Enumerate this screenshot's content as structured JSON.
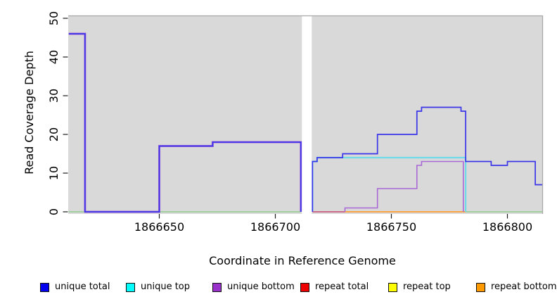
{
  "chart_data": {
    "type": "line",
    "subtype": "step-coverage-plot",
    "title": "",
    "xlabel": "Coordinate in Reference Genome",
    "ylabel": "Read Coverage Depth",
    "xticks": [
      1866650,
      1866700,
      1866750,
      1866800
    ],
    "yticks": [
      0,
      10,
      20,
      30,
      40,
      50
    ],
    "xlim": [
      1866611,
      1866815
    ],
    "ylim": [
      0,
      51
    ],
    "grid": false,
    "plot_bg": "#d9d9d9",
    "border_color": "#a8a8a8",
    "gap_x": [
      1866711,
      1866716
    ],
    "series": [
      {
        "name": "baseline zero",
        "color": "#82c982",
        "width": 1.3,
        "segments": [
          [
            [
              1866611,
              0
            ],
            [
              1866711,
              0
            ]
          ],
          [
            [
              1866782,
              0
            ],
            [
              1866815,
              0
            ]
          ]
        ]
      },
      {
        "name": "repeat total",
        "color": "#c9496f",
        "width": 1.6,
        "segments": [
          [
            [
              1866716,
              0
            ],
            [
              1866730,
              0
            ]
          ]
        ]
      },
      {
        "name": "repeat bottom",
        "color": "#ff9d2e",
        "width": 1.8,
        "segments": [
          [
            [
              1866730,
              0
            ],
            [
              1866782,
              0
            ]
          ]
        ]
      },
      {
        "name": "unique bottom",
        "color": "#a869d6",
        "width": 1.6,
        "segwidths": [
          3.0,
          1.6
        ],
        "segments": [
          [
            [
              1866611,
              46
            ],
            [
              1866618,
              46
            ],
            [
              1866618,
              0
            ],
            [
              1866650,
              0
            ],
            [
              1866650,
              17
            ],
            [
              1866673,
              17
            ],
            [
              1866673,
              18
            ],
            [
              1866711,
              18
            ],
            [
              1866711,
              0
            ]
          ],
          [
            [
              1866730,
              0
            ],
            [
              1866730,
              1
            ],
            [
              1866744,
              1
            ],
            [
              1866744,
              6
            ],
            [
              1866761,
              6
            ],
            [
              1866761,
              12
            ],
            [
              1866763,
              12
            ],
            [
              1866763,
              13
            ],
            [
              1866781,
              13
            ],
            [
              1866781,
              0
            ]
          ]
        ]
      },
      {
        "name": "unique top",
        "color": "#6fdbe8",
        "width": 2.2,
        "segments": [
          [
            [
              1866716,
              0
            ],
            [
              1866716,
              13
            ],
            [
              1866718,
              13
            ],
            [
              1866718,
              14
            ],
            [
              1866782,
              14
            ],
            [
              1866782,
              0
            ]
          ]
        ]
      },
      {
        "name": "repeat top",
        "color": "#ffff00",
        "width": 1.6,
        "visible": false,
        "segments": []
      },
      {
        "name": "unique total",
        "color": "#3a35e8",
        "width": 1.7,
        "segments": [
          [
            [
              1866611,
              46
            ],
            [
              1866618,
              46
            ],
            [
              1866618,
              0
            ],
            [
              1866650,
              0
            ],
            [
              1866650,
              17
            ],
            [
              1866673,
              17
            ],
            [
              1866673,
              18
            ],
            [
              1866711,
              18
            ],
            [
              1866711,
              0
            ]
          ],
          [
            [
              1866716,
              0
            ],
            [
              1866716,
              13
            ],
            [
              1866718,
              13
            ],
            [
              1866718,
              14
            ],
            [
              1866729,
              14
            ],
            [
              1866729,
              15
            ],
            [
              1866744,
              15
            ],
            [
              1866744,
              20
            ],
            [
              1866761,
              20
            ],
            [
              1866761,
              26
            ],
            [
              1866763,
              26
            ],
            [
              1866763,
              27
            ],
            [
              1866780,
              27
            ],
            [
              1866780,
              26
            ],
            [
              1866782,
              26
            ],
            [
              1866782,
              13
            ],
            [
              1866793,
              13
            ],
            [
              1866793,
              12
            ],
            [
              1866800,
              12
            ],
            [
              1866800,
              13
            ],
            [
              1866812,
              13
            ],
            [
              1866812,
              7
            ],
            [
              1866815,
              7
            ]
          ]
        ]
      }
    ],
    "legend": [
      {
        "label": "unique total",
        "color": "#0000ee"
      },
      {
        "label": "unique top",
        "color": "#00ffff"
      },
      {
        "label": "unique bottom",
        "color": "#9933cc"
      },
      {
        "label": "repeat total",
        "color": "#ee0000"
      },
      {
        "label": "repeat top",
        "color": "#ffff00"
      },
      {
        "label": "repeat bottom",
        "color": "#ff9900"
      }
    ],
    "legend_position": "bottom"
  }
}
